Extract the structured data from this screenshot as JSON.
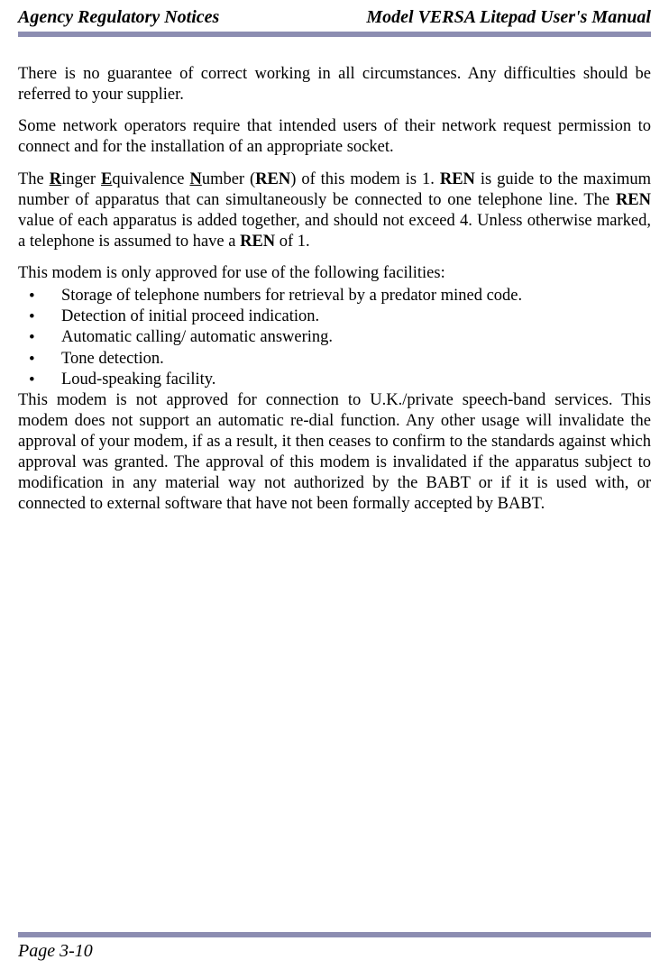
{
  "header": {
    "left": "Agency Regulatory Notices",
    "right": "Model VERSA Litepad User's Manual"
  },
  "dividerColor": "#8c8db1",
  "paragraphs": {
    "p1": "There is no guarantee of correct working in all circumstances. Any difficulties should be referred to your supplier.",
    "p2": "Some network operators require that intended users of their network request permission to connect and for the installation of an appropriate socket.",
    "p3_part1": "The ",
    "p3_R": "R",
    "p3_inger": "inger ",
    "p3_E": "E",
    "p3_quivalence": "quivalence ",
    "p3_N": "N",
    "p3_umber": "umber (",
    "p3_REN1": "REN",
    "p3_mid1": ") of this modem is 1. ",
    "p3_REN2": "REN",
    "p3_mid2": " is guide to the maximum number of apparatus that can simultaneously be connected to one telephone line. The ",
    "p3_REN3": "REN",
    "p3_mid3": " value of each apparatus is added together, and should not exceed 4. Unless otherwise marked, a telephone is assumed to have a ",
    "p3_REN4": "REN",
    "p3_end": " of 1.",
    "p4_intro": "This modem is only approved for use of the following facilities:",
    "bullets": [
      "Storage of telephone numbers for retrieval by a predator mined code.",
      "Detection of initial proceed indication.",
      "Automatic calling/ automatic answering.",
      "Tone detection.",
      "Loud-speaking facility."
    ],
    "p5": "This modem is not approved for connection to U.K./private speech-band services. This modem does not support an automatic re-dial function. Any other usage will invalidate the approval of your modem, if as a result, it then ceases to confirm to the standards against which approval was granted. The approval of this modem is invalidated if the apparatus subject to modification in any material way not authorized by the BABT or if it is used with, or connected to external software that have not been formally accepted by BABT."
  },
  "footer": {
    "pageNumber": "Page 3-10"
  },
  "styling": {
    "fontFamily": "Times New Roman",
    "bodyFontSize": 18.5,
    "headerFontSize": 20,
    "backgroundColor": "#ffffff",
    "textColor": "#000000"
  }
}
